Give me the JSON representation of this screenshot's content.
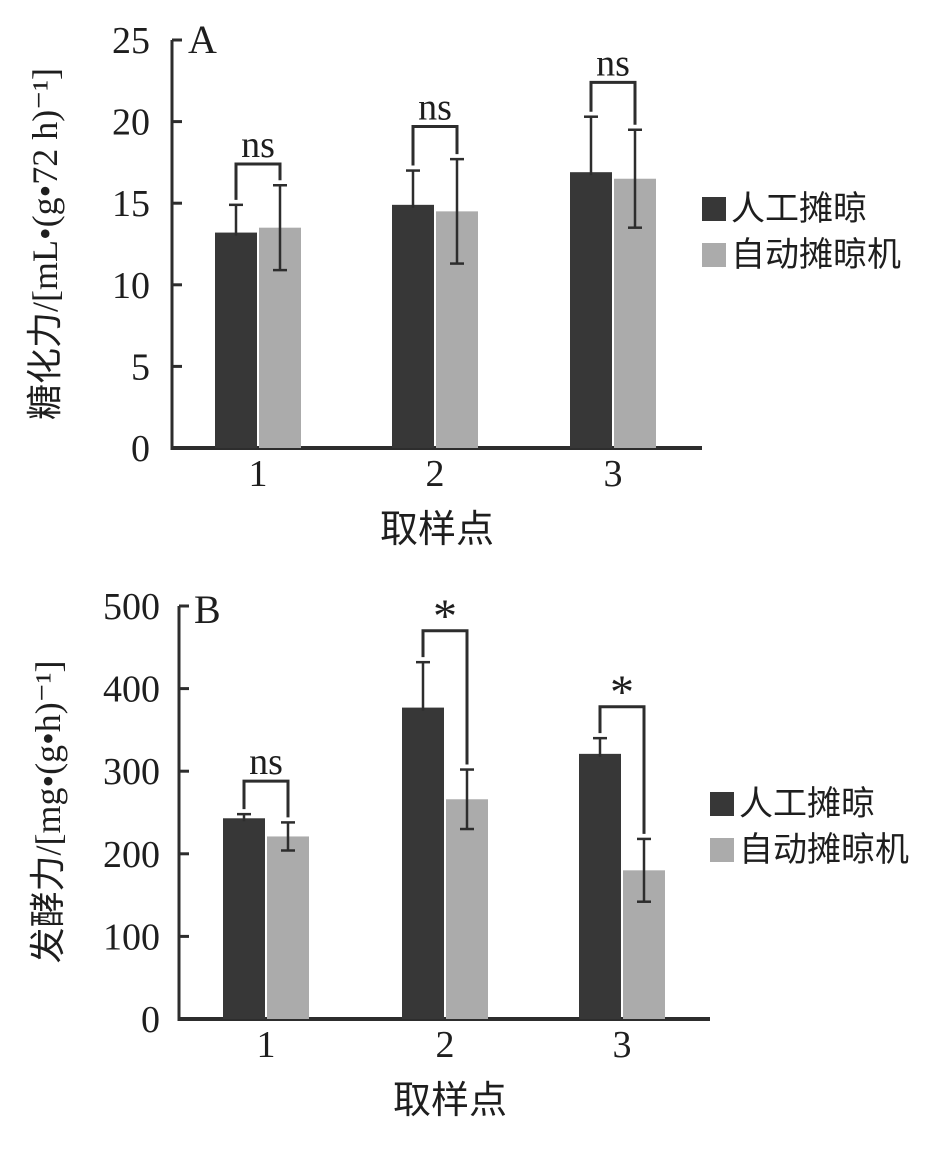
{
  "figure_title": "",
  "chart_data": [
    {
      "panel_label": "A",
      "type": "bar",
      "categories": [
        "1",
        "2",
        "3"
      ],
      "xlabel": "取样点",
      "ylabel": "糖化力/[mL•(g•72 h)⁻¹]",
      "ylim": [
        0,
        25
      ],
      "yticks": [
        0,
        5,
        10,
        15,
        20,
        25
      ],
      "grid": false,
      "legend_position": "right-middle",
      "series": [
        {
          "name": "人工摊晾",
          "color": "#373737",
          "values": [
            13.2,
            14.9,
            16.9
          ],
          "errors": [
            1.7,
            2.1,
            3.4
          ],
          "error_bars": "upper-only"
        },
        {
          "name": "自动摊晾机",
          "color": "#ababab",
          "values": [
            13.5,
            14.5,
            16.5
          ],
          "errors": [
            2.6,
            3.2,
            3.0
          ],
          "error_bars": "both"
        }
      ],
      "significance": [
        {
          "category": "1",
          "label": "ns",
          "bracket_y": 17.4
        },
        {
          "category": "2",
          "label": "ns",
          "bracket_y": 19.7
        },
        {
          "category": "3",
          "label": "ns",
          "bracket_y": 22.4
        }
      ]
    },
    {
      "panel_label": "B",
      "type": "bar",
      "categories": [
        "1",
        "2",
        "3"
      ],
      "xlabel": "取样点",
      "ylabel": "发酵力/[mg•(g•h)⁻¹]",
      "ylim": [
        0,
        500
      ],
      "yticks": [
        0,
        100,
        200,
        300,
        400,
        500
      ],
      "grid": false,
      "legend_position": "right-middle",
      "series": [
        {
          "name": "人工摊晾",
          "color": "#373737",
          "values": [
            243,
            377,
            321
          ],
          "errors": [
            5,
            55,
            19
          ],
          "error_bars": "upper-only"
        },
        {
          "name": "自动摊晾机",
          "color": "#ababab",
          "values": [
            221,
            266,
            180
          ],
          "errors": [
            17,
            36,
            38
          ],
          "error_bars": "both"
        }
      ],
      "significance": [
        {
          "category": "1",
          "label": "ns",
          "bracket_y": 288
        },
        {
          "category": "2",
          "label": "*",
          "bracket_y": 470
        },
        {
          "category": "3",
          "label": "*",
          "bracket_y": 378
        }
      ]
    }
  ],
  "colors": {
    "axis": "#2d2d2d",
    "error_bar": "#2d2d2d",
    "bracket": "#2d2d2d",
    "background": "#ffffff"
  }
}
